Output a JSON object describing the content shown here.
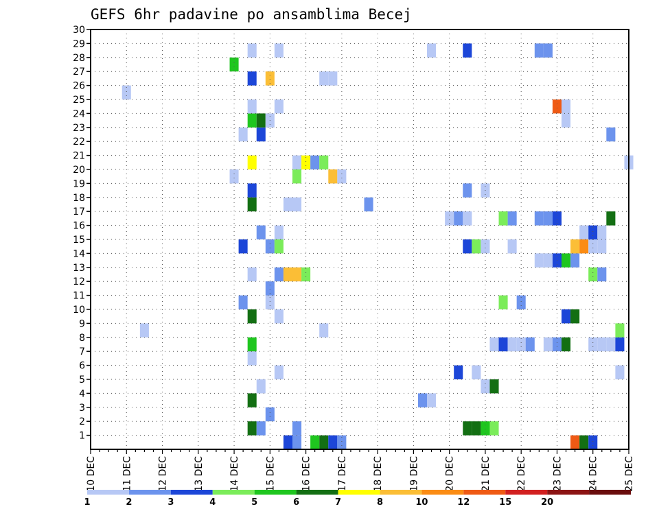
{
  "chart_data": {
    "type": "heatmap",
    "title": "GEFS 6hr padavine po ansamblima Becej",
    "xlabel": "",
    "ylabel": "",
    "x_tick_labels": [
      "10 DEC",
      "11 DEC",
      "12 DEC",
      "13 DEC",
      "14 DEC",
      "15 DEC",
      "16 DEC",
      "17 DEC",
      "18 DEC",
      "19 DEC",
      "20 DEC",
      "21 DEC",
      "22 DEC",
      "23 DEC",
      "24 DEC",
      "25 DEC"
    ],
    "y_tick_labels": [
      "1",
      "2",
      "3",
      "4",
      "5",
      "6",
      "7",
      "8",
      "9",
      "10",
      "11",
      "12",
      "13",
      "14",
      "15",
      "16",
      "17",
      "18",
      "19",
      "20",
      "21",
      "22",
      "23",
      "24",
      "25",
      "26",
      "27",
      "28",
      "29",
      "30"
    ],
    "xlim_days": [
      10,
      25
    ],
    "ylim": [
      0,
      30
    ],
    "grid": true,
    "colorbar": {
      "labels": [
        "1",
        "2",
        "3",
        "4",
        "5",
        "6",
        "7",
        "8",
        "10",
        "12",
        "15",
        "20"
      ],
      "colors": [
        "#b7c8f5",
        "#6c93ed",
        "#1c46d8",
        "#7bec5a",
        "#1fc61f",
        "#136f13",
        "#ffff00",
        "#fbbe36",
        "#fb8c14",
        "#ef5a14",
        "#d22020",
        "#8c1414",
        "#6a0d0d"
      ]
    },
    "cells": [
      {
        "day": 15.5,
        "member": 0,
        "c": 2
      },
      {
        "day": 15.75,
        "member": 0,
        "c": 1
      },
      {
        "day": 16.25,
        "member": 0,
        "c": 4
      },
      {
        "day": 16.5,
        "member": 0,
        "c": 5
      },
      {
        "day": 16.75,
        "member": 0,
        "c": 2
      },
      {
        "day": 17.0,
        "member": 0,
        "c": 1
      },
      {
        "day": 23.5,
        "member": 0,
        "c": 9
      },
      {
        "day": 23.75,
        "member": 0,
        "c": 5
      },
      {
        "day": 24.0,
        "member": 0,
        "c": 2
      },
      {
        "day": 14.5,
        "member": 1,
        "c": 5
      },
      {
        "day": 14.75,
        "member": 1,
        "c": 1
      },
      {
        "day": 15.75,
        "member": 1,
        "c": 1
      },
      {
        "day": 20.5,
        "member": 1,
        "c": 5
      },
      {
        "day": 20.75,
        "member": 1,
        "c": 5
      },
      {
        "day": 21.0,
        "member": 1,
        "c": 4
      },
      {
        "day": 21.25,
        "member": 1,
        "c": 3
      },
      {
        "day": 15.0,
        "member": 2,
        "c": 1
      },
      {
        "day": 14.5,
        "member": 3,
        "c": 5
      },
      {
        "day": 19.25,
        "member": 3,
        "c": 1
      },
      {
        "day": 19.5,
        "member": 3,
        "c": 0
      },
      {
        "day": 14.75,
        "member": 4,
        "c": 0
      },
      {
        "day": 21.0,
        "member": 4,
        "c": 0
      },
      {
        "day": 21.25,
        "member": 4,
        "c": 5
      },
      {
        "day": 15.25,
        "member": 5,
        "c": 0
      },
      {
        "day": 20.25,
        "member": 5,
        "c": 2
      },
      {
        "day": 20.75,
        "member": 5,
        "c": 0
      },
      {
        "day": 24.75,
        "member": 5,
        "c": 0
      },
      {
        "day": 14.5,
        "member": 6,
        "c": 0
      },
      {
        "day": 14.5,
        "member": 7,
        "c": 4
      },
      {
        "day": 21.25,
        "member": 7,
        "c": 0
      },
      {
        "day": 21.5,
        "member": 7,
        "c": 2
      },
      {
        "day": 21.75,
        "member": 7,
        "c": 0
      },
      {
        "day": 22.0,
        "member": 7,
        "c": 0
      },
      {
        "day": 22.25,
        "member": 7,
        "c": 1
      },
      {
        "day": 22.75,
        "member": 7,
        "c": 0
      },
      {
        "day": 23.0,
        "member": 7,
        "c": 1
      },
      {
        "day": 23.25,
        "member": 7,
        "c": 5
      },
      {
        "day": 24.0,
        "member": 7,
        "c": 0
      },
      {
        "day": 24.25,
        "member": 7,
        "c": 0
      },
      {
        "day": 24.5,
        "member": 7,
        "c": 0
      },
      {
        "day": 24.75,
        "member": 7,
        "c": 2
      },
      {
        "day": 11.5,
        "member": 8,
        "c": 0
      },
      {
        "day": 16.5,
        "member": 8,
        "c": 0
      },
      {
        "day": 24.75,
        "member": 8,
        "c": 3
      },
      {
        "day": 14.5,
        "member": 9,
        "c": 5
      },
      {
        "day": 15.25,
        "member": 9,
        "c": 0
      },
      {
        "day": 23.25,
        "member": 9,
        "c": 2
      },
      {
        "day": 23.5,
        "member": 9,
        "c": 5
      },
      {
        "day": 14.25,
        "member": 10,
        "c": 1
      },
      {
        "day": 15.0,
        "member": 10,
        "c": 0
      },
      {
        "day": 21.5,
        "member": 10,
        "c": 3
      },
      {
        "day": 22.0,
        "member": 10,
        "c": 1
      },
      {
        "day": 15.0,
        "member": 11,
        "c": 1
      },
      {
        "day": 14.5,
        "member": 12,
        "c": 0
      },
      {
        "day": 15.25,
        "member": 12,
        "c": 1
      },
      {
        "day": 15.5,
        "member": 12,
        "c": 7
      },
      {
        "day": 15.75,
        "member": 12,
        "c": 7
      },
      {
        "day": 16.0,
        "member": 12,
        "c": 3
      },
      {
        "day": 24.0,
        "member": 12,
        "c": 3
      },
      {
        "day": 24.25,
        "member": 12,
        "c": 1
      },
      {
        "day": 22.5,
        "member": 13,
        "c": 0
      },
      {
        "day": 22.75,
        "member": 13,
        "c": 0
      },
      {
        "day": 23.0,
        "member": 13,
        "c": 2
      },
      {
        "day": 23.25,
        "member": 13,
        "c": 4
      },
      {
        "day": 23.5,
        "member": 13,
        "c": 1
      },
      {
        "day": 14.25,
        "member": 14,
        "c": 2
      },
      {
        "day": 15.0,
        "member": 14,
        "c": 1
      },
      {
        "day": 15.25,
        "member": 14,
        "c": 3
      },
      {
        "day": 20.5,
        "member": 14,
        "c": 2
      },
      {
        "day": 20.75,
        "member": 14,
        "c": 3
      },
      {
        "day": 21.0,
        "member": 14,
        "c": 0
      },
      {
        "day": 21.75,
        "member": 14,
        "c": 0
      },
      {
        "day": 23.5,
        "member": 14,
        "c": 7
      },
      {
        "day": 23.75,
        "member": 14,
        "c": 8
      },
      {
        "day": 24.0,
        "member": 14,
        "c": 0
      },
      {
        "day": 24.25,
        "member": 14,
        "c": 0
      },
      {
        "day": 14.75,
        "member": 15,
        "c": 1
      },
      {
        "day": 15.25,
        "member": 15,
        "c": 0
      },
      {
        "day": 23.75,
        "member": 15,
        "c": 0
      },
      {
        "day": 24.0,
        "member": 15,
        "c": 2
      },
      {
        "day": 24.25,
        "member": 15,
        "c": 0
      },
      {
        "day": 20.0,
        "member": 16,
        "c": 0
      },
      {
        "day": 20.25,
        "member": 16,
        "c": 1
      },
      {
        "day": 20.5,
        "member": 16,
        "c": 0
      },
      {
        "day": 21.5,
        "member": 16,
        "c": 3
      },
      {
        "day": 21.75,
        "member": 16,
        "c": 1
      },
      {
        "day": 22.5,
        "member": 16,
        "c": 1
      },
      {
        "day": 22.75,
        "member": 16,
        "c": 1
      },
      {
        "day": 23.0,
        "member": 16,
        "c": 2
      },
      {
        "day": 24.5,
        "member": 16,
        "c": 5
      },
      {
        "day": 14.5,
        "member": 17,
        "c": 5
      },
      {
        "day": 15.5,
        "member": 17,
        "c": 0
      },
      {
        "day": 15.75,
        "member": 17,
        "c": 0
      },
      {
        "day": 17.75,
        "member": 17,
        "c": 1
      },
      {
        "day": 14.5,
        "member": 18,
        "c": 2
      },
      {
        "day": 20.5,
        "member": 18,
        "c": 1
      },
      {
        "day": 21.0,
        "member": 18,
        "c": 0
      },
      {
        "day": 14.0,
        "member": 19,
        "c": 0
      },
      {
        "day": 15.75,
        "member": 19,
        "c": 3
      },
      {
        "day": 16.75,
        "member": 19,
        "c": 7
      },
      {
        "day": 17.0,
        "member": 19,
        "c": 0
      },
      {
        "day": 14.5,
        "member": 20,
        "c": 6
      },
      {
        "day": 15.75,
        "member": 20,
        "c": 0
      },
      {
        "day": 16.0,
        "member": 20,
        "c": 6
      },
      {
        "day": 16.25,
        "member": 20,
        "c": 1
      },
      {
        "day": 16.5,
        "member": 20,
        "c": 3
      },
      {
        "day": 25.0,
        "member": 20,
        "c": 0
      },
      {
        "day": 24.5,
        "member": 22,
        "c": 1
      },
      {
        "day": 14.25,
        "member": 22,
        "c": 0
      },
      {
        "day": 14.75,
        "member": 22,
        "c": 2
      },
      {
        "day": 14.5,
        "member": 23,
        "c": 4
      },
      {
        "day": 14.75,
        "member": 23,
        "c": 5
      },
      {
        "day": 15.0,
        "member": 23,
        "c": 0
      },
      {
        "day": 14.5,
        "member": 24,
        "c": 0
      },
      {
        "day": 15.25,
        "member": 24,
        "c": 0
      },
      {
        "day": 23.0,
        "member": 24,
        "c": 9
      },
      {
        "day": 23.25,
        "member": 24,
        "c": 0
      },
      {
        "day": 23.25,
        "member": 23,
        "c": 0
      },
      {
        "day": 11.0,
        "member": 25,
        "c": 0
      },
      {
        "day": 14.5,
        "member": 26,
        "c": 2
      },
      {
        "day": 15.0,
        "member": 26,
        "c": 7
      },
      {
        "day": 16.5,
        "member": 26,
        "c": 0
      },
      {
        "day": 16.75,
        "member": 26,
        "c": 0
      },
      {
        "day": 14.0,
        "member": 27,
        "c": 4
      },
      {
        "day": 14.5,
        "member": 28,
        "c": 0
      },
      {
        "day": 15.25,
        "member": 28,
        "c": 0
      },
      {
        "day": 19.5,
        "member": 28,
        "c": 0
      },
      {
        "day": 20.5,
        "member": 28,
        "c": 2
      },
      {
        "day": 22.5,
        "member": 28,
        "c": 1
      },
      {
        "day": 22.75,
        "member": 28,
        "c": 1
      }
    ]
  }
}
